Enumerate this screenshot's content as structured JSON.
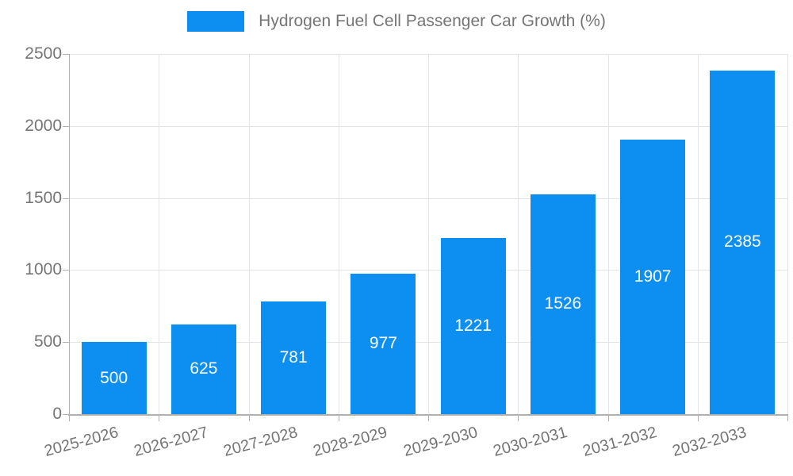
{
  "legend": {
    "position": "top-center"
  },
  "chart_data": {
    "type": "bar",
    "title": "Hydrogen Fuel Cell Passenger Car Growth (%)",
    "categories": [
      "2025-2026",
      "2026-2027",
      "2027-2028",
      "2028-2029",
      "2029-2030",
      "2030-2031",
      "2031-2032",
      "2032-2033"
    ],
    "values": [
      500,
      625,
      781,
      977,
      1221,
      1526,
      1907,
      2385
    ],
    "xlabel": "",
    "ylabel": "",
    "ylim": [
      0,
      2500
    ],
    "yticks": [
      0,
      500,
      1000,
      1500,
      2000,
      2500
    ],
    "grid": true,
    "x_tick_rotation_deg": -15,
    "value_labels": "inside-center",
    "legend_position": "top-center"
  },
  "colors": {
    "bar": "#0d8ff2",
    "grid": "#e4e4e4",
    "axis": "#b0b0b0",
    "tick_text": "#757575",
    "value_label_text": "#ffffff",
    "background": "#ffffff"
  }
}
